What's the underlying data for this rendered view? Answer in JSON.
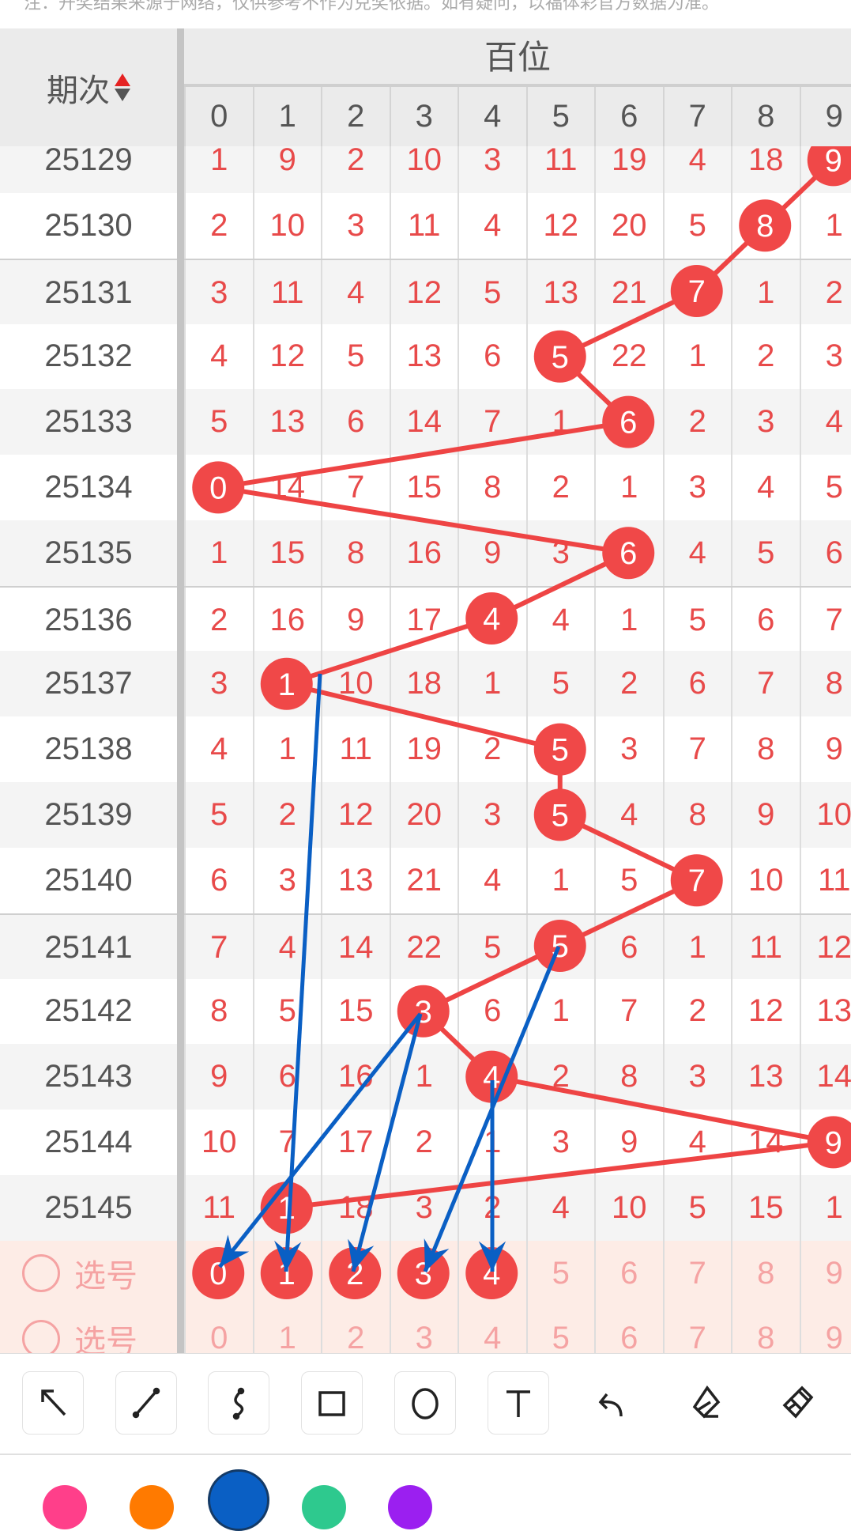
{
  "note": "注：开奖结果来源于网络，仅供参考不作为兑奖依据。如有疑问，以福体彩官方数据为准。",
  "header": {
    "period_label": "期次",
    "group_title": "百位",
    "digits": [
      "0",
      "1",
      "2",
      "3",
      "4",
      "5",
      "6",
      "7",
      "8",
      "9"
    ]
  },
  "rows": [
    {
      "period": "25129",
      "values": [
        "1",
        "9",
        "2",
        "10",
        "3",
        "11",
        "19",
        "4",
        "18",
        "9"
      ],
      "hit": 9
    },
    {
      "period": "25130",
      "values": [
        "2",
        "10",
        "3",
        "11",
        "4",
        "12",
        "20",
        "5",
        "8",
        "1"
      ],
      "hit": 8
    },
    {
      "period": "25131",
      "values": [
        "3",
        "11",
        "4",
        "12",
        "5",
        "13",
        "21",
        "7",
        "1",
        "2"
      ],
      "hit": 7
    },
    {
      "period": "25132",
      "values": [
        "4",
        "12",
        "5",
        "13",
        "6",
        "5",
        "22",
        "1",
        "2",
        "3"
      ],
      "hit": 5
    },
    {
      "period": "25133",
      "values": [
        "5",
        "13",
        "6",
        "14",
        "7",
        "1",
        "6",
        "2",
        "3",
        "4"
      ],
      "hit": 6
    },
    {
      "period": "25134",
      "values": [
        "0",
        "14",
        "7",
        "15",
        "8",
        "2",
        "1",
        "3",
        "4",
        "5"
      ],
      "hit": 0
    },
    {
      "period": "25135",
      "values": [
        "1",
        "15",
        "8",
        "16",
        "9",
        "3",
        "6",
        "4",
        "5",
        "6"
      ],
      "hit": 6
    },
    {
      "period": "25136",
      "values": [
        "2",
        "16",
        "9",
        "17",
        "4",
        "4",
        "1",
        "5",
        "6",
        "7"
      ],
      "hit": 4
    },
    {
      "period": "25137",
      "values": [
        "3",
        "1",
        "10",
        "18",
        "1",
        "5",
        "2",
        "6",
        "7",
        "8"
      ],
      "hit": 1
    },
    {
      "period": "25138",
      "values": [
        "4",
        "1",
        "11",
        "19",
        "2",
        "5",
        "3",
        "7",
        "8",
        "9"
      ],
      "hit": 5
    },
    {
      "period": "25139",
      "values": [
        "5",
        "2",
        "12",
        "20",
        "3",
        "5",
        "4",
        "8",
        "9",
        "10"
      ],
      "hit": 5
    },
    {
      "period": "25140",
      "values": [
        "6",
        "3",
        "13",
        "21",
        "4",
        "1",
        "5",
        "7",
        "10",
        "11"
      ],
      "hit": 7
    },
    {
      "period": "25141",
      "values": [
        "7",
        "4",
        "14",
        "22",
        "5",
        "5",
        "6",
        "1",
        "11",
        "12"
      ],
      "hit": 5
    },
    {
      "period": "25142",
      "values": [
        "8",
        "5",
        "15",
        "3",
        "6",
        "1",
        "7",
        "2",
        "12",
        "13"
      ],
      "hit": 3
    },
    {
      "period": "25143",
      "values": [
        "9",
        "6",
        "16",
        "1",
        "4",
        "2",
        "8",
        "3",
        "13",
        "14"
      ],
      "hit": 4
    },
    {
      "period": "25144",
      "values": [
        "10",
        "7",
        "17",
        "2",
        "1",
        "3",
        "9",
        "4",
        "14",
        "9"
      ],
      "hit": 9
    },
    {
      "period": "25145",
      "values": [
        "11",
        "1",
        "18",
        "3",
        "2",
        "4",
        "10",
        "5",
        "15",
        "1"
      ],
      "hit": 1
    }
  ],
  "select_rows": [
    {
      "label": "选号",
      "digits": [
        "0",
        "1",
        "2",
        "3",
        "4",
        "5",
        "6",
        "7",
        "8",
        "9"
      ],
      "selected": [
        0,
        1,
        2,
        3,
        4
      ]
    },
    {
      "label": "选号",
      "digits": [
        "0",
        "1",
        "2",
        "3",
        "4",
        "5",
        "6",
        "7",
        "8",
        "9"
      ],
      "selected": []
    }
  ],
  "toolbar": {
    "tools": [
      {
        "name": "arrow-tool",
        "icon": "arrow-up-left-icon",
        "boxed": true
      },
      {
        "name": "line-tool",
        "icon": "line-icon",
        "boxed": true
      },
      {
        "name": "curve-tool",
        "icon": "curve-icon",
        "boxed": true
      },
      {
        "name": "rectangle-tool",
        "icon": "rectangle-icon",
        "boxed": true
      },
      {
        "name": "circle-tool",
        "icon": "circle-icon",
        "boxed": true
      },
      {
        "name": "text-tool",
        "icon": "text-icon",
        "boxed": true
      },
      {
        "name": "undo-button",
        "icon": "undo-icon",
        "boxed": false
      },
      {
        "name": "eraser-tool",
        "icon": "eraser-icon",
        "boxed": false
      },
      {
        "name": "clear-button",
        "icon": "broom-icon",
        "boxed": false
      }
    ],
    "colors": [
      "#ff3f8a",
      "#ff7a00",
      "#0a5fc4",
      "#2ec98e",
      "#9b1ff0"
    ],
    "selected_color": "#0a5fc4"
  },
  "colors": {
    "hit": "#f04848",
    "trend_line": "#ee4444",
    "annotation": "#0a5fc4",
    "number": "#e84a4a"
  }
}
